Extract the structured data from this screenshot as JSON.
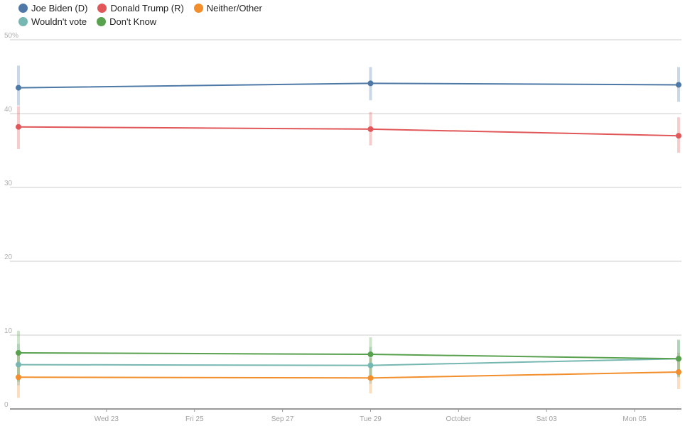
{
  "chart_data": {
    "type": "line",
    "title": "",
    "xlabel": "",
    "ylabel": "",
    "ylim": [
      0,
      50
    ],
    "y_ticks": [
      {
        "value": 0,
        "label": "0"
      },
      {
        "value": 10,
        "label": "10"
      },
      {
        "value": 20,
        "label": "20"
      },
      {
        "value": 30,
        "label": "30"
      },
      {
        "value": 40,
        "label": "40"
      },
      {
        "value": 50,
        "label": "50%"
      }
    ],
    "x_range": [
      "2020-09-21",
      "2020-10-06"
    ],
    "x_ticks": [
      {
        "date": "2020-09-23",
        "label": "Wed 23"
      },
      {
        "date": "2020-09-25",
        "label": "Fri 25"
      },
      {
        "date": "2020-09-27",
        "label": "Sep 27"
      },
      {
        "date": "2020-09-29",
        "label": "Tue 29"
      },
      {
        "date": "2020-10-01",
        "label": "October"
      },
      {
        "date": "2020-10-03",
        "label": "Sat 03"
      },
      {
        "date": "2020-10-05",
        "label": "Mon 05"
      }
    ],
    "grid": true,
    "legend_position": "top-left",
    "x": [
      "2020-09-21",
      "2020-09-29",
      "2020-10-06"
    ],
    "series": [
      {
        "name": "Joe Biden (D)",
        "color": "#4e79a7",
        "values": [
          43.5,
          44.1,
          43.9
        ],
        "error_low": [
          41.1,
          41.8,
          41.6
        ],
        "error_high": [
          46.5,
          46.3,
          46.3
        ]
      },
      {
        "name": "Donald Trump (R)",
        "color": "#e15759",
        "values": [
          38.2,
          37.9,
          37.0
        ],
        "error_low": [
          35.2,
          35.7,
          34.7
        ],
        "error_high": [
          41.0,
          40.2,
          39.5
        ]
      },
      {
        "name": "Neither/Other",
        "color": "#f28e2b",
        "values": [
          4.3,
          4.2,
          5.0
        ],
        "error_low": [
          1.5,
          2.1,
          2.7
        ],
        "error_high": [
          7.5,
          6.9,
          7.6
        ]
      },
      {
        "name": "Wouldn't vote",
        "color": "#76b7b2",
        "values": [
          6.0,
          5.9,
          6.8
        ],
        "error_low": [
          3.2,
          3.4,
          4.4
        ],
        "error_high": [
          8.8,
          8.4,
          9.3
        ]
      },
      {
        "name": "Don't Know",
        "color": "#59a14f",
        "values": [
          7.6,
          7.4,
          6.8
        ],
        "error_low": [
          3.7,
          4.0,
          4.3
        ],
        "error_high": [
          10.6,
          9.7,
          9.4
        ]
      }
    ]
  }
}
